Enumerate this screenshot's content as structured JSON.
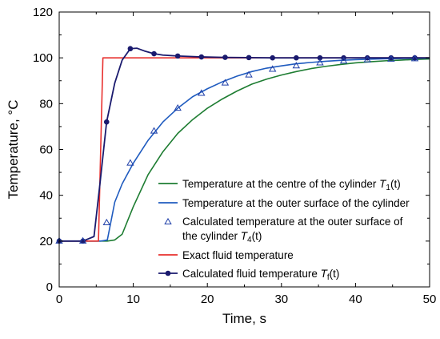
{
  "chart_data": {
    "type": "line",
    "title": "",
    "xlabel": "Time, s",
    "ylabel": "Temperature, °C",
    "xlim": [
      0,
      50
    ],
    "ylim": [
      0,
      120
    ],
    "xticks": [
      0,
      10,
      20,
      30,
      40,
      50
    ],
    "yticks": [
      0,
      20,
      40,
      60,
      80,
      100,
      120
    ],
    "grid": false,
    "legend_position": "bottom-right",
    "series": [
      {
        "name_parts": [
          "Temperature at the centre of the cylinder ",
          "T",
          "1",
          "(t)"
        ],
        "kind": "line",
        "color": "#1e7d32",
        "x": [
          0,
          5.6,
          6.5,
          7.5,
          8.5,
          10,
          12,
          14,
          16,
          18,
          20,
          22,
          24,
          26,
          28,
          30,
          32,
          34,
          36,
          38,
          40,
          42,
          44,
          46,
          48,
          50
        ],
        "y": [
          20,
          20,
          20,
          20.5,
          23,
          35,
          49,
          59,
          67,
          73,
          78,
          82,
          85.5,
          88.5,
          90.7,
          92.5,
          94,
          95.3,
          96.3,
          97.1,
          97.8,
          98.3,
          98.7,
          99,
          99.3,
          99.5
        ]
      },
      {
        "name_parts": [
          "Temperature at the outer surface of the cylinder"
        ],
        "kind": "line",
        "color": "#1f5bbf",
        "x": [
          0,
          5.6,
          6.5,
          7.5,
          8.5,
          10,
          12,
          14,
          16,
          18,
          20,
          22,
          24,
          26,
          28,
          30,
          32,
          34,
          36,
          38,
          40,
          42,
          44,
          46,
          48,
          50
        ],
        "y": [
          20,
          20,
          20.5,
          37,
          45,
          54,
          64,
          72,
          78,
          83,
          86.5,
          89.5,
          92,
          94,
          95.5,
          96.5,
          97.4,
          98,
          98.5,
          98.9,
          99.2,
          99.4,
          99.6,
          99.7,
          99.8,
          99.9
        ]
      },
      {
        "name_parts": [
          "Calculated temperature at the outer surface of",
          "the cylinder ",
          "T",
          "4",
          "(t)"
        ],
        "kind": "markers-triangle",
        "color": "#1f3fa8",
        "x": [
          0,
          3.2,
          6.4,
          9.6,
          12.8,
          16,
          19.2,
          22.4,
          25.6,
          28.8,
          32,
          35.2,
          38.4,
          41.6,
          44.8,
          48
        ],
        "y": [
          20,
          20,
          28,
          54,
          68,
          78,
          84.5,
          89,
          92.5,
          95,
          96.5,
          97.8,
          98.6,
          99.1,
          99.4,
          99.6
        ]
      },
      {
        "name_parts": [
          "Exact fluid temperature"
        ],
        "kind": "line",
        "color": "#e8302e",
        "x": [
          0,
          5.3,
          5.9,
          50
        ],
        "y": [
          20,
          20,
          100,
          100
        ]
      },
      {
        "name_parts": [
          "Calculated fluid temperature ",
          "T",
          "f",
          "(t)"
        ],
        "kind": "line-dots",
        "color": "#1a1a6e",
        "x": [
          0,
          3.2,
          4.7,
          5.5,
          6.4,
          7.5,
          8.5,
          9.6,
          10.5,
          11.5,
          12.8,
          14,
          16,
          19.2,
          22.4,
          25.6,
          28.8,
          32,
          35.2,
          38.4,
          41.6,
          44.8,
          48,
          50
        ],
        "y": [
          20,
          20,
          22,
          45,
          72,
          89,
          99,
          104,
          104.2,
          103,
          101.8,
          101.2,
          100.8,
          100.4,
          100.2,
          100.1,
          100,
          100,
          100,
          100,
          100,
          100,
          100,
          100
        ],
        "markers_x": [
          0,
          3.2,
          6.4,
          9.6,
          12.8,
          16,
          19.2,
          22.4,
          25.6,
          28.8,
          32,
          35.2,
          38.4,
          41.6,
          44.8,
          48
        ],
        "markers_y": [
          20,
          20,
          72,
          104,
          101.8,
          100.8,
          100.4,
          100.2,
          100.1,
          100,
          100,
          100,
          100,
          100,
          100,
          100
        ]
      }
    ]
  }
}
